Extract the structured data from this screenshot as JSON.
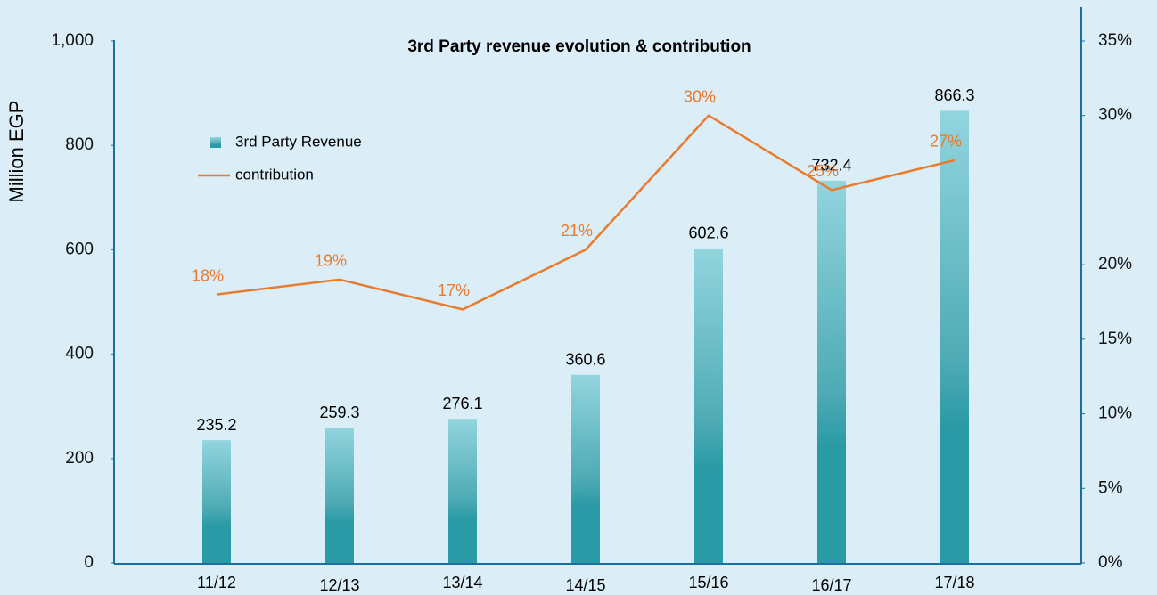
{
  "chart_data": {
    "type": "bar_line",
    "title": "3rd Party revenue evolution & contribution",
    "ylabel": "Million EGP",
    "categories": [
      "11/12",
      "12/13",
      "13/14",
      "14/15",
      "15/16",
      "16/17",
      "17/18"
    ],
    "series": [
      {
        "name": "3rd Party Revenue",
        "type": "bar",
        "color": "#2a9aa6",
        "values": [
          235.2,
          259.3,
          276.1,
          360.6,
          602.6,
          732.4,
          866.3
        ]
      },
      {
        "name": "contribution",
        "type": "line",
        "axis": "y2",
        "color": "#e87b2e",
        "values": [
          18,
          19,
          17,
          21,
          30,
          25,
          27
        ],
        "value_labels": [
          "18%",
          "19%",
          "17%",
          "21%",
          "30%",
          "25%",
          "27%"
        ]
      }
    ],
    "ylim": [
      0,
      1000
    ],
    "yticks": [
      0,
      200,
      400,
      600,
      800,
      {
        "value": 1000,
        "label": "1,000"
      }
    ],
    "y2lim": [
      0,
      35
    ],
    "y2ticks": [
      {
        "value": 0,
        "label": "0%"
      },
      {
        "value": 5,
        "label": "5%"
      },
      {
        "value": 10,
        "label": "10%"
      },
      {
        "value": 15,
        "label": "15%"
      },
      {
        "value": 20,
        "label": "20%"
      },
      {
        "value": 30,
        "label": "30%"
      },
      {
        "value": 35,
        "label": "35%"
      }
    ],
    "grid": false
  }
}
